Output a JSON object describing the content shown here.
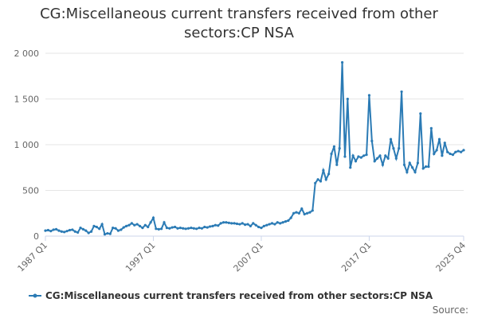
{
  "chart_data": {
    "type": "line",
    "title": "CG:Miscellaneous current transfers received from other sectors:CP NSA",
    "source": "Source:",
    "categories": [
      "1987 Q1",
      null,
      null,
      null,
      null,
      null,
      null,
      null,
      null,
      null,
      null,
      null,
      null,
      null,
      null,
      null,
      null,
      null,
      null,
      null,
      null,
      null,
      null,
      null,
      null,
      null,
      null,
      null,
      null,
      null,
      null,
      null,
      null,
      null,
      null,
      null,
      null,
      null,
      null,
      null,
      "1997 Q1",
      null,
      null,
      null,
      null,
      null,
      null,
      null,
      null,
      null,
      null,
      null,
      null,
      null,
      null,
      null,
      null,
      null,
      null,
      null,
      null,
      null,
      null,
      null,
      null,
      null,
      null,
      null,
      null,
      null,
      null,
      null,
      null,
      null,
      null,
      null,
      null,
      null,
      null,
      null,
      "2007 Q1",
      null,
      null,
      null,
      null,
      null,
      null,
      null,
      null,
      null,
      null,
      null,
      null,
      null,
      null,
      null,
      null,
      null,
      null,
      null,
      null,
      null,
      null,
      null,
      null,
      null,
      null,
      null,
      null,
      null,
      null,
      null,
      null,
      null,
      null,
      null,
      null,
      null,
      null,
      null,
      "2017 Q1",
      null,
      null,
      null,
      null,
      null,
      null,
      null,
      null,
      null,
      null,
      null,
      null,
      null,
      null,
      null,
      null,
      null,
      null,
      null,
      null,
      null,
      null,
      null,
      null,
      null,
      null,
      null,
      null,
      null,
      null,
      null,
      null,
      null,
      null,
      "2025 Q4"
    ],
    "series": [
      {
        "name": "CG:Miscellaneous current transfers received from other sectors:CP NSA",
        "color": "#2b7bb5",
        "values": [
          60,
          65,
          55,
          70,
          75,
          60,
          50,
          45,
          55,
          65,
          70,
          50,
          40,
          90,
          75,
          60,
          35,
          50,
          110,
          100,
          80,
          130,
          20,
          30,
          25,
          90,
          85,
          60,
          70,
          95,
          110,
          120,
          140,
          120,
          130,
          110,
          90,
          120,
          100,
          150,
          200,
          80,
          75,
          80,
          150,
          90,
          85,
          95,
          100,
          85,
          90,
          85,
          80,
          85,
          90,
          85,
          80,
          90,
          85,
          100,
          95,
          105,
          110,
          120,
          115,
          140,
          150,
          150,
          145,
          140,
          140,
          135,
          130,
          140,
          125,
          130,
          110,
          140,
          120,
          100,
          90,
          110,
          120,
          130,
          140,
          130,
          150,
          140,
          150,
          160,
          170,
          200,
          250,
          260,
          250,
          300,
          240,
          250,
          260,
          280,
          580,
          620,
          600,
          720,
          620,
          680,
          900,
          980,
          780,
          960,
          1900,
          870,
          1500,
          750,
          880,
          820,
          870,
          860,
          880,
          890,
          1540,
          1040,
          820,
          850,
          880,
          780,
          880,
          850,
          1060,
          960,
          850,
          960,
          1580,
          780,
          700,
          800,
          750,
          700,
          800,
          1340,
          740,
          760,
          760,
          1180,
          900,
          940,
          1060,
          880,
          1020,
          920,
          900,
          890,
          920,
          930,
          920,
          940
        ]
      }
    ],
    "ylim": [
      0,
      2000
    ],
    "yticks": [
      0,
      500,
      {
        "value": 1000,
        "label": "1 000"
      },
      {
        "value": 1500,
        "label": "1 500"
      },
      {
        "value": 2000,
        "label": "2 000"
      }
    ],
    "grid": true
  }
}
